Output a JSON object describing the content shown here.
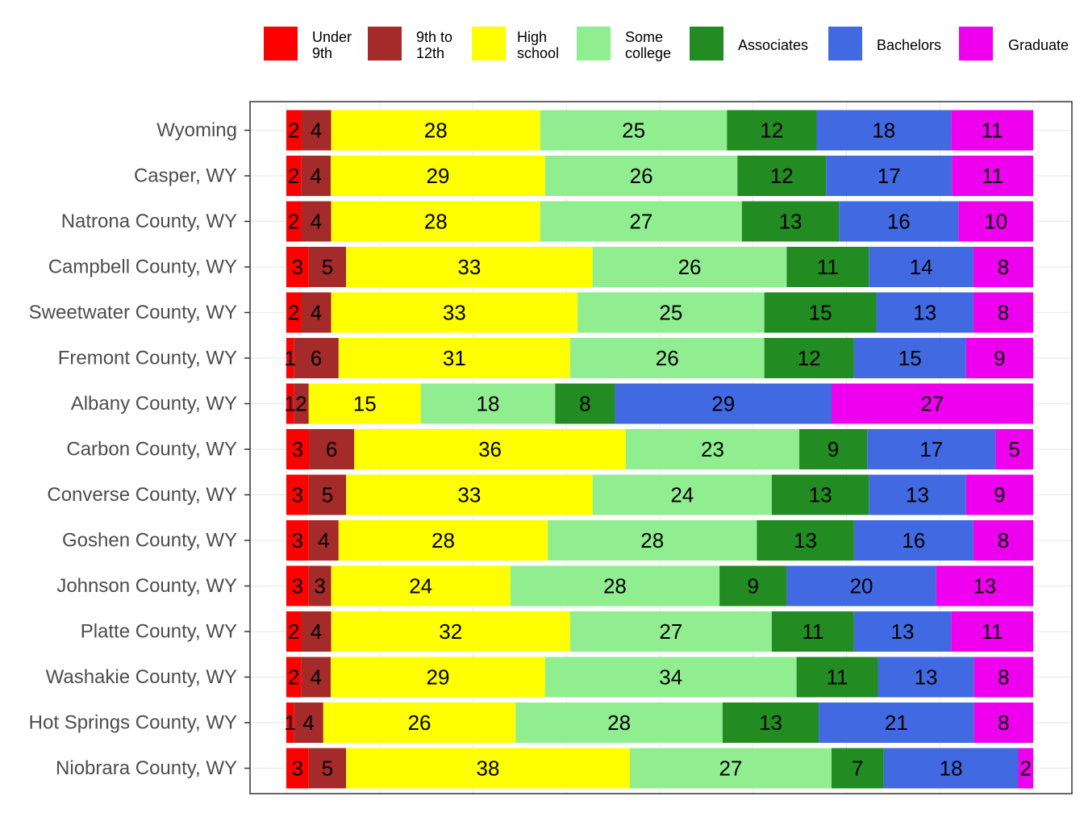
{
  "chart_data": {
    "type": "bar",
    "orientation": "horizontal",
    "stacked": true,
    "normalized": true,
    "grid": true,
    "legend_position": "top",
    "xlim": [
      0,
      100
    ],
    "categories": [
      "Wyoming",
      "Casper, WY",
      "Natrona County, WY",
      "Campbell County, WY",
      "Sweetwater County, WY",
      "Fremont County, WY",
      "Albany County, WY",
      "Carbon County, WY",
      "Converse County, WY",
      "Goshen County, WY",
      "Johnson County, WY",
      "Platte County, WY",
      "Washakie County, WY",
      "Hot Springs County, WY",
      "Niobrara County, WY"
    ],
    "series": [
      {
        "name": "Under 9th",
        "legend_lines": [
          "Under",
          "9th"
        ],
        "color": "#ff0000",
        "values": [
          2,
          2,
          2,
          3,
          2,
          1,
          1,
          3,
          3,
          3,
          3,
          2,
          2,
          1,
          3
        ]
      },
      {
        "name": "9th to 12th",
        "legend_lines": [
          "9th to",
          "12th"
        ],
        "color": "#a52a2a",
        "values": [
          4,
          4,
          4,
          5,
          4,
          6,
          2,
          6,
          5,
          4,
          3,
          4,
          4,
          4,
          5
        ]
      },
      {
        "name": "High school",
        "legend_lines": [
          "High",
          "school"
        ],
        "color": "#ffff00",
        "values": [
          28,
          29,
          28,
          33,
          33,
          31,
          15,
          36,
          33,
          28,
          24,
          32,
          29,
          26,
          38
        ]
      },
      {
        "name": "Some college",
        "legend_lines": [
          "Some",
          "college"
        ],
        "color": "#90ee90",
        "values": [
          25,
          26,
          27,
          26,
          25,
          26,
          18,
          23,
          24,
          28,
          28,
          27,
          34,
          28,
          27
        ]
      },
      {
        "name": "Associates",
        "legend_lines": [
          "Associates"
        ],
        "color": "#228b22",
        "values": [
          12,
          12,
          13,
          11,
          15,
          12,
          8,
          9,
          13,
          13,
          9,
          11,
          11,
          13,
          7
        ]
      },
      {
        "name": "Bachelors",
        "legend_lines": [
          "Bachelors"
        ],
        "color": "#4169e1",
        "values": [
          18,
          17,
          16,
          14,
          13,
          15,
          29,
          17,
          13,
          16,
          20,
          13,
          13,
          21,
          18
        ]
      },
      {
        "name": "Graduate",
        "legend_lines": [
          "Graduate"
        ],
        "color": "#ee00ee",
        "values": [
          11,
          11,
          10,
          8,
          8,
          9,
          27,
          5,
          9,
          8,
          13,
          11,
          8,
          8,
          2
        ]
      }
    ]
  }
}
